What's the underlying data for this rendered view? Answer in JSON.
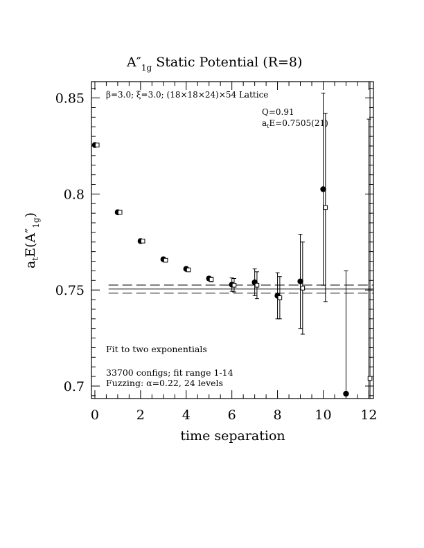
{
  "chart_data": {
    "type": "scatter",
    "title": "A″",
    "title_sub": "1g",
    "title_rest": " Static Potential (R=8)",
    "xlabel": "time separation",
    "ylabel_pre": "a",
    "ylabel_t": "t",
    "ylabel_mid": "E(A″",
    "ylabel_sub": "1g",
    "ylabel_post": ")",
    "xlim": [
      -0.15,
      12.2
    ],
    "ylim": [
      0.6935,
      0.8585
    ],
    "x_ticks": [
      0,
      2,
      4,
      6,
      8,
      10,
      12
    ],
    "y_ticks": [
      0.7,
      0.75,
      0.8,
      0.85
    ],
    "x_tick_labels": [
      "0",
      "2",
      "4",
      "6",
      "8",
      "10",
      "12"
    ],
    "y_tick_labels": [
      "0.7",
      "0.75",
      "0.8",
      "0.85"
    ],
    "annotations": {
      "lattice_a": "β=3.0; ξ=3.0; (18×18×24)×54 Lattice",
      "q": "Q=0.91",
      "energy_pre": "a",
      "energy_sub": "t",
      "energy_post": "E=0.7505(21)",
      "fit": "Fit to two exponentials",
      "configs": "33700 configs; fit range 1-14",
      "fuzzing": "Fuzzing: α=0.22, 24 levels"
    },
    "fit_band": {
      "center": 0.7505,
      "upper": 0.7526,
      "lower": 0.7484,
      "x_start": 0.6,
      "x_end": 12.2
    },
    "series": [
      {
        "marker": "filled-circle",
        "points": [
          {
            "x": 0,
            "y": 0.8255,
            "err": 0
          },
          {
            "x": 1,
            "y": 0.7905,
            "err": 0
          },
          {
            "x": 2,
            "y": 0.7755,
            "err": 0
          },
          {
            "x": 3,
            "y": 0.766,
            "err": 0
          },
          {
            "x": 4,
            "y": 0.761,
            "err": 0
          },
          {
            "x": 5,
            "y": 0.756,
            "err": 0.001
          },
          {
            "x": 6,
            "y": 0.7528,
            "err": 0.0035
          },
          {
            "x": 7,
            "y": 0.754,
            "err": 0.007
          },
          {
            "x": 8,
            "y": 0.747,
            "err": 0.012
          },
          {
            "x": 9,
            "y": 0.7545,
            "err": 0.0245
          },
          {
            "x": 10,
            "y": 0.8025,
            "err": 0.05
          },
          {
            "x": 11,
            "y": 0.696,
            "err": 0.064
          },
          {
            "x": 12,
            "y": 0.689,
            "err": 0.15
          }
        ]
      },
      {
        "marker": "open-square",
        "points": [
          {
            "x": 0.1,
            "y": 0.8255,
            "err": 0
          },
          {
            "x": 1.1,
            "y": 0.7905,
            "err": 0
          },
          {
            "x": 2.1,
            "y": 0.7755,
            "err": 0
          },
          {
            "x": 3.1,
            "y": 0.7655,
            "err": 0
          },
          {
            "x": 4.1,
            "y": 0.7605,
            "err": 0
          },
          {
            "x": 5.1,
            "y": 0.7555,
            "err": 0.0012
          },
          {
            "x": 6.1,
            "y": 0.7525,
            "err": 0.0035
          },
          {
            "x": 7.1,
            "y": 0.7525,
            "err": 0.007
          },
          {
            "x": 8.1,
            "y": 0.746,
            "err": 0.011
          },
          {
            "x": 9.1,
            "y": 0.751,
            "err": 0.024
          },
          {
            "x": 10.1,
            "y": 0.793,
            "err": 0.049
          },
          {
            "x": 12.05,
            "y": 0.704,
            "err": 0.16
          }
        ]
      }
    ]
  }
}
